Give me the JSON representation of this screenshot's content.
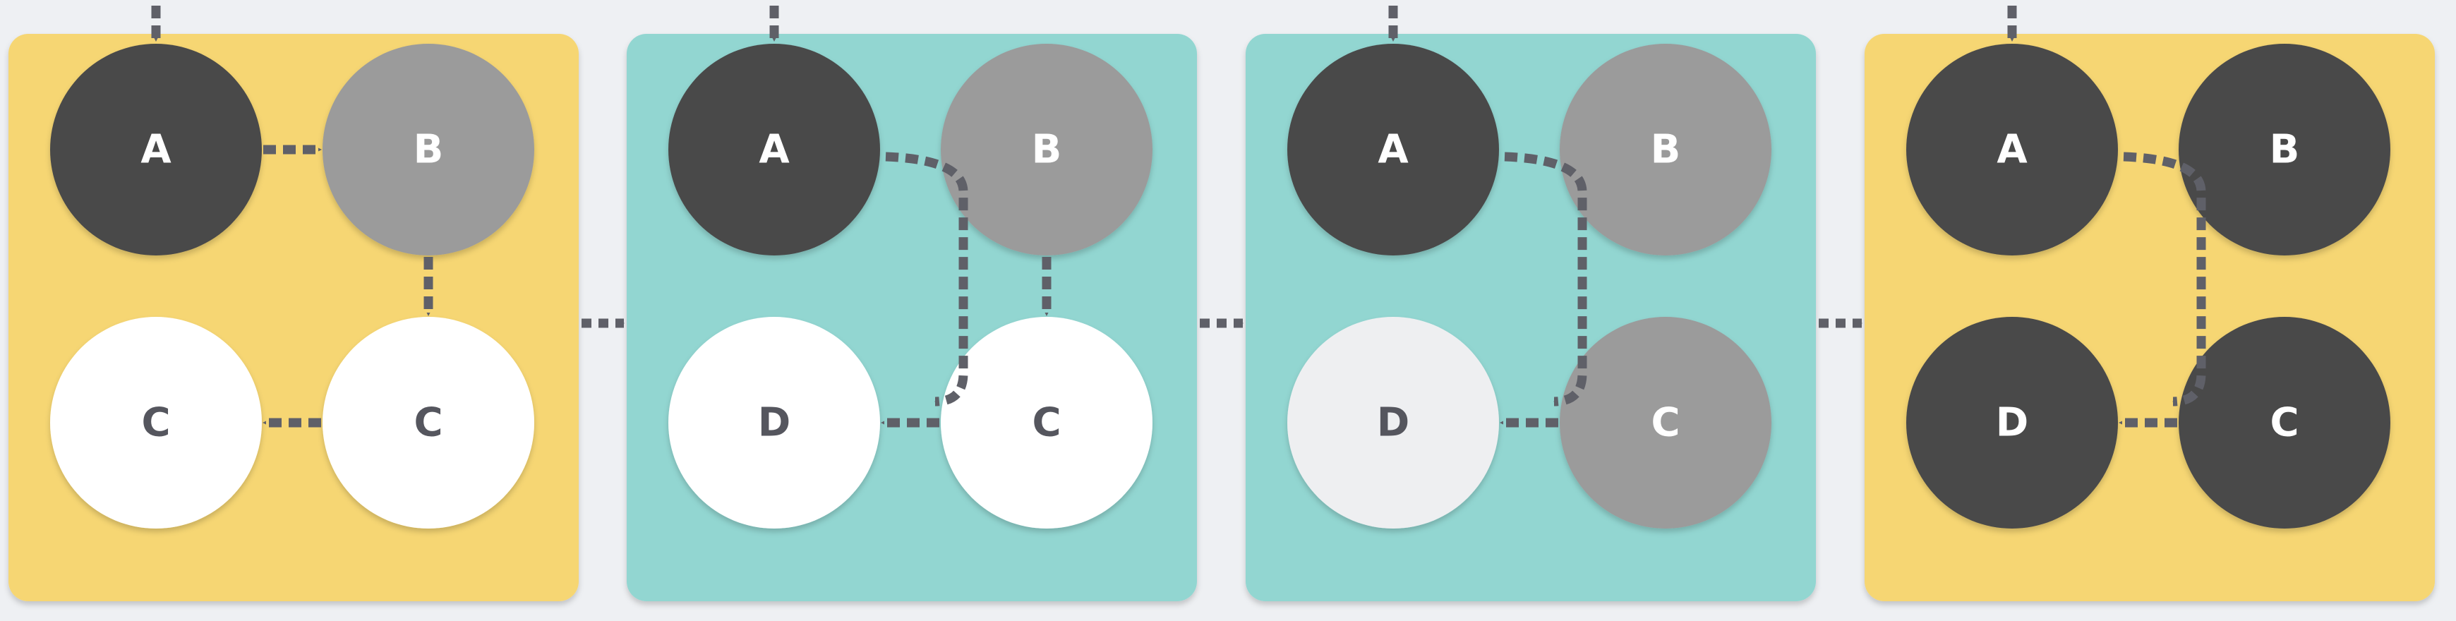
{
  "colors": {
    "background": "#eef0f3",
    "yellow": "#f6d673",
    "teal": "#92d6d1",
    "arrow": "#5f6068"
  },
  "panels": [
    {
      "fill": "yellow",
      "nodes": [
        {
          "slot": "tl",
          "label": "A",
          "fill": "#4a4a4a",
          "text": "#ffffff"
        },
        {
          "slot": "tr",
          "label": "B",
          "fill": "#9b9b9b",
          "text": "#ffffff"
        },
        {
          "slot": "bl",
          "label": "C",
          "fill": "#ffffff",
          "text": "#55565e"
        },
        {
          "slot": "br",
          "label": "C",
          "fill": "#ffffff",
          "text": "#55565e"
        }
      ],
      "edges": [
        {
          "from": "tl",
          "to": "tr"
        },
        {
          "from": "tr",
          "to": "br"
        },
        {
          "from": "br",
          "to": "bl"
        }
      ]
    },
    {
      "fill": "teal",
      "nodes": [
        {
          "slot": "tl",
          "label": "A",
          "fill": "#4a4a4a",
          "text": "#ffffff"
        },
        {
          "slot": "tr",
          "label": "B",
          "fill": "#9b9b9b",
          "text": "#ffffff"
        },
        {
          "slot": "bl",
          "label": "D",
          "fill": "#ffffff",
          "text": "#55565e"
        },
        {
          "slot": "br",
          "label": "C",
          "fill": "#ffffff",
          "text": "#55565e"
        }
      ],
      "edges": [
        {
          "from": "tl",
          "to": "br",
          "curved": true
        },
        {
          "from": "tr",
          "to": "br"
        },
        {
          "from": "br",
          "to": "bl"
        }
      ]
    },
    {
      "fill": "teal",
      "nodes": [
        {
          "slot": "tl",
          "label": "A",
          "fill": "#4a4a4a",
          "text": "#ffffff"
        },
        {
          "slot": "tr",
          "label": "B",
          "fill": "#9b9b9b",
          "text": "#ffffff"
        },
        {
          "slot": "bl",
          "label": "D",
          "fill": "#eeeff1",
          "text": "#55565e"
        },
        {
          "slot": "br",
          "label": "C",
          "fill": "#9b9b9b",
          "text": "#ffffff"
        }
      ],
      "edges": [
        {
          "from": "tl",
          "to": "br",
          "curved": true
        },
        {
          "from": "br",
          "to": "bl"
        }
      ]
    },
    {
      "fill": "yellow",
      "nodes": [
        {
          "slot": "tl",
          "label": "A",
          "fill": "#4a4a4a",
          "text": "#ffffff"
        },
        {
          "slot": "tr",
          "label": "B",
          "fill": "#4a4a4a",
          "text": "#ffffff"
        },
        {
          "slot": "bl",
          "label": "D",
          "fill": "#4a4a4a",
          "text": "#ffffff"
        },
        {
          "slot": "br",
          "label": "C",
          "fill": "#4a4a4a",
          "text": "#ffffff"
        }
      ],
      "edges": [
        {
          "from": "tl",
          "to": "br",
          "curved": true
        },
        {
          "from": "br",
          "to": "bl"
        }
      ]
    }
  ]
}
